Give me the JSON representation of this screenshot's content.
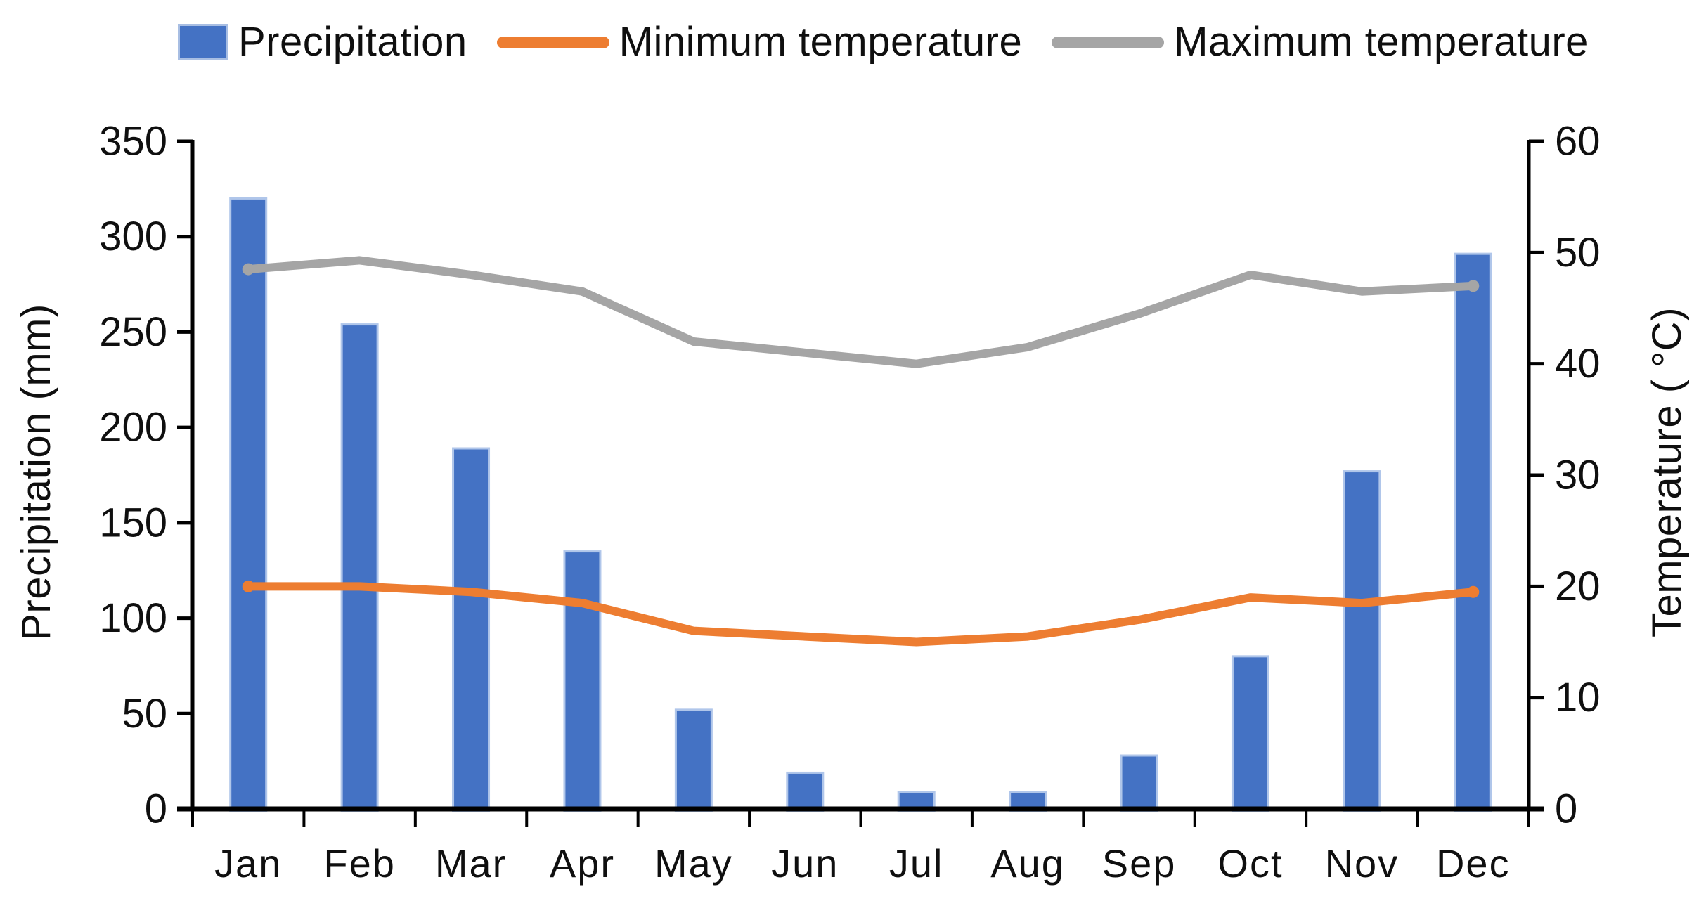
{
  "legend": [
    {
      "label": "Precipitation",
      "type": "bar",
      "color": "#4472C4"
    },
    {
      "label": "Minimum temperature",
      "type": "line",
      "color": "#ED7D31"
    },
    {
      "label": "Maximum temperature",
      "type": "line",
      "color": "#A5A5A5"
    }
  ],
  "axes": {
    "left": {
      "title": "Precipitation (mm)",
      "tick_labels": [
        "0",
        "50",
        "100",
        "150",
        "200",
        "250",
        "300",
        "350"
      ],
      "range": [
        0,
        350
      ]
    },
    "right": {
      "title": "Temperature ( °C)",
      "tick_labels": [
        "0",
        "10",
        "20",
        "30",
        "40",
        "50",
        "60"
      ],
      "range": [
        0,
        60
      ]
    },
    "bottom": {
      "categories": [
        "Jan",
        "Feb",
        "Mar",
        "Apr",
        "May",
        "Jun",
        "Jul",
        "Aug",
        "Sep",
        "Oct",
        "Nov",
        "Dec"
      ]
    }
  },
  "colors": {
    "bar_fill": "#4472C4",
    "bar_edge": "#b0c6ea",
    "min_temp_line": "#ED7D31",
    "max_temp_line": "#A5A5A5",
    "axis": "#000000",
    "text": "#0f0f0f",
    "background": "#ffffff"
  },
  "chart_data": {
    "type": "bar",
    "combo": "bar+line",
    "title": "",
    "xlabel": "",
    "ylabel_left": "Precipitation (mm)",
    "ylabel_right": "Temperature ( °C)",
    "categories": [
      "Jan",
      "Feb",
      "Mar",
      "Apr",
      "May",
      "Jun",
      "Jul",
      "Aug",
      "Sep",
      "Oct",
      "Nov",
      "Dec"
    ],
    "series": [
      {
        "name": "Precipitation",
        "type": "bar",
        "axis": "left",
        "unit": "mm",
        "color": "#4472C4",
        "values": [
          320,
          254,
          189,
          135,
          52,
          19,
          9,
          9,
          28,
          80,
          177,
          291
        ]
      },
      {
        "name": "Minimum temperature",
        "type": "line",
        "axis": "right",
        "unit": "°C",
        "color": "#ED7D31",
        "values": [
          20.0,
          20.0,
          19.5,
          18.5,
          16.0,
          15.5,
          15.0,
          15.5,
          17.0,
          19.0,
          18.5,
          19.5
        ]
      },
      {
        "name": "Maximum temperature",
        "type": "line",
        "axis": "right",
        "unit": "°C",
        "color": "#A5A5A5",
        "values": [
          48.5,
          49.3,
          48.0,
          46.5,
          42.0,
          41.0,
          40.0,
          41.5,
          44.5,
          48.0,
          46.5,
          47.0
        ]
      }
    ],
    "ylim_left": [
      0,
      350
    ],
    "ylim_right": [
      0,
      60
    ],
    "ytick_step_left": 50,
    "ytick_step_right": 10,
    "grid": false,
    "legend_position": "top"
  }
}
